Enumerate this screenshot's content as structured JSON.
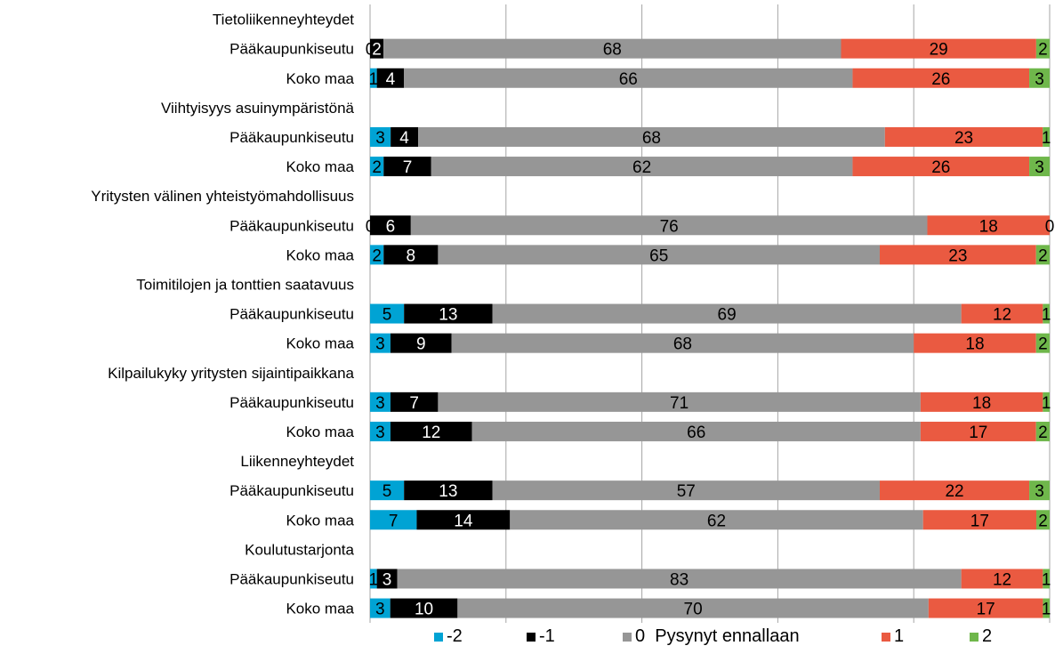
{
  "chart_data": {
    "type": "bar",
    "orientation": "horizontal",
    "stacked": true,
    "grid": true,
    "legend_position": "bottom",
    "xlim": [
      0,
      100
    ],
    "categories": [
      {
        "label": "Tietoliikenneyhteydet",
        "kind": "group"
      },
      {
        "label": "Pääkaupunkiseutu",
        "kind": "bar"
      },
      {
        "label": "Koko maa",
        "kind": "bar"
      },
      {
        "label": "Viihtyisyys asuinympäristönä",
        "kind": "group"
      },
      {
        "label": "Pääkaupunkiseutu",
        "kind": "bar"
      },
      {
        "label": "Koko maa",
        "kind": "bar"
      },
      {
        "label": "Yritysten välinen yhteistyömahdollisuus",
        "kind": "group"
      },
      {
        "label": "Pääkaupunkiseutu",
        "kind": "bar"
      },
      {
        "label": "Koko maa",
        "kind": "bar"
      },
      {
        "label": "Toimitilojen ja tonttien saatavuus",
        "kind": "group"
      },
      {
        "label": "Pääkaupunkiseutu",
        "kind": "bar"
      },
      {
        "label": "Koko maa",
        "kind": "bar"
      },
      {
        "label": "Kilpailukyky yritysten sijaintipaikkana",
        "kind": "group"
      },
      {
        "label": "Pääkaupunkiseutu",
        "kind": "bar"
      },
      {
        "label": "Koko maa",
        "kind": "bar"
      },
      {
        "label": "Liikenneyhteydet",
        "kind": "group"
      },
      {
        "label": "Pääkaupunkiseutu",
        "kind": "bar"
      },
      {
        "label": "Koko maa",
        "kind": "bar"
      },
      {
        "label": "Koulutustarjonta",
        "kind": "group"
      },
      {
        "label": "Pääkaupunkiseutu",
        "kind": "bar"
      },
      {
        "label": "Koko maa",
        "kind": "bar"
      }
    ],
    "series": [
      {
        "name": "-2",
        "color": "#00a3d4",
        "values": [
          null,
          0,
          1,
          null,
          3,
          2,
          null,
          0,
          2,
          null,
          5,
          3,
          null,
          3,
          3,
          null,
          5,
          7,
          null,
          1,
          3
        ]
      },
      {
        "name": "-1",
        "color": "#000000",
        "values": [
          null,
          2,
          4,
          null,
          4,
          7,
          null,
          6,
          8,
          null,
          13,
          9,
          null,
          7,
          12,
          null,
          13,
          14,
          null,
          3,
          10
        ]
      },
      {
        "name": "0  Pysynyt ennallaan",
        "color": "#969696",
        "values": [
          null,
          68,
          66,
          null,
          68,
          62,
          null,
          76,
          65,
          null,
          69,
          68,
          null,
          71,
          66,
          null,
          57,
          62,
          null,
          83,
          70
        ]
      },
      {
        "name": "1",
        "color": "#ea5a41",
        "values": [
          null,
          29,
          26,
          null,
          23,
          26,
          null,
          18,
          23,
          null,
          12,
          18,
          null,
          18,
          17,
          null,
          22,
          17,
          null,
          12,
          17
        ]
      },
      {
        "name": "2",
        "color": "#6fb74b",
        "values": [
          null,
          2,
          3,
          null,
          1,
          3,
          null,
          0,
          2,
          null,
          1,
          2,
          null,
          1,
          2,
          null,
          3,
          2,
          null,
          1,
          1
        ]
      }
    ]
  }
}
